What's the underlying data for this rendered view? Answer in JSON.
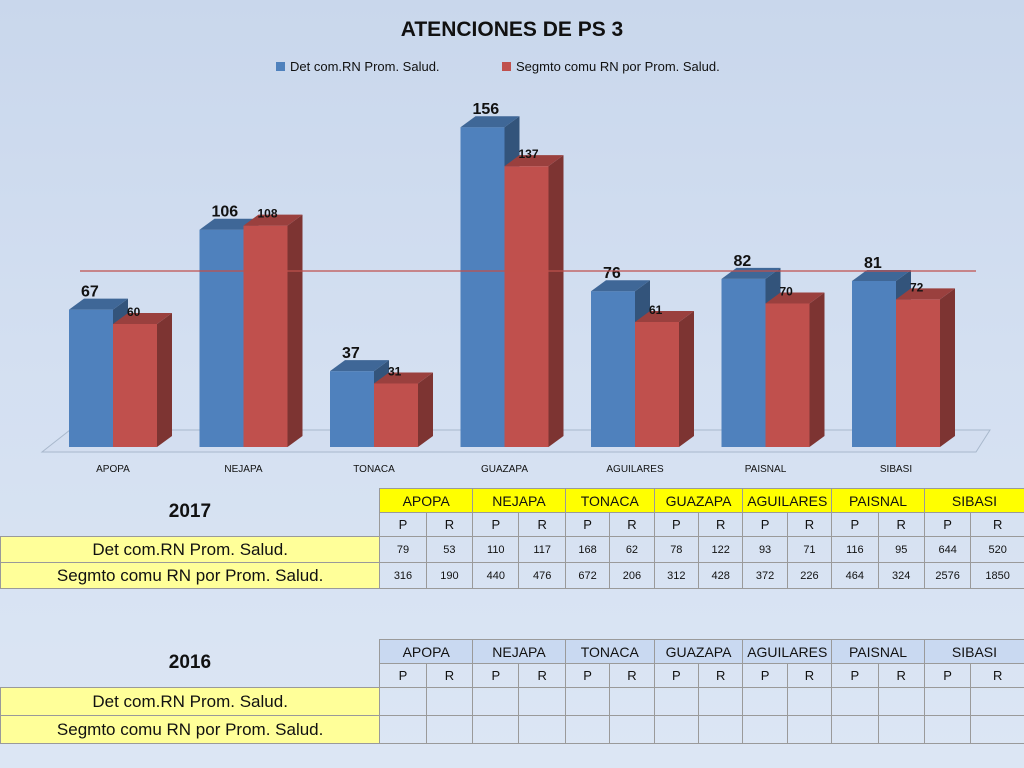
{
  "chart_data": {
    "type": "bar",
    "title": "ATENCIONES DE PS 3",
    "categories": [
      "APOPA",
      "NEJAPA",
      "TONACA",
      "GUAZAPA",
      "AGUILARES",
      "PAISNAL",
      "SIBASI"
    ],
    "series": [
      {
        "name": "Det com.RN  Prom. Salud.",
        "values": [
          67,
          106,
          37,
          156,
          76,
          82,
          81
        ],
        "color": "#4f81bd"
      },
      {
        "name": "Segmto comu RN por Prom. Salud.",
        "values": [
          60,
          108,
          31,
          137,
          61,
          70,
          72
        ],
        "color": "#c0504d"
      }
    ],
    "reference_line": {
      "value": 80,
      "color": "#c0504d"
    },
    "ylim": [
      0,
      160
    ],
    "grid": false,
    "legend": "top",
    "three_d": true
  },
  "table_2017": {
    "year": "2017",
    "columns": [
      "APOPA",
      "NEJAPA",
      "TONACA",
      "GUAZAPA",
      "AGUILARES",
      "PAISNAL",
      "SIBASI"
    ],
    "subcols": [
      "P",
      "R",
      "P",
      "R",
      "P",
      "R",
      "P",
      "R",
      "P",
      "R",
      "P",
      "R",
      "P",
      "R"
    ],
    "rows": [
      {
        "label": " Det com.RN  Prom. Salud.",
        "values": [
          "79",
          "53",
          "110",
          "117",
          "168",
          "62",
          "78",
          "122",
          "93",
          "71",
          "116",
          "95",
          "644",
          "520"
        ]
      },
      {
        "label": "Segmto comu RN por Prom. Salud.",
        "values": [
          "316",
          "190",
          "440",
          "476",
          "672",
          "206",
          "312",
          "428",
          "372",
          "226",
          "464",
          "324",
          "2576",
          "1850"
        ]
      }
    ]
  },
  "table_2016": {
    "year": "2016",
    "columns": [
      "APOPA",
      "NEJAPA",
      "TONACA",
      "GUAZAPA",
      "AGUILARES",
      "PAISNAL",
      "SIBASI"
    ],
    "subcols": [
      "P",
      "R",
      "P",
      "R",
      "P",
      "R",
      "P",
      "R",
      "P",
      "R",
      "P",
      "R",
      "P",
      "R"
    ],
    "rows": [
      {
        "label": " Det com.RN  Prom. Salud.",
        "values": []
      },
      {
        "label": "Segmto comu RN por Prom. Salud.",
        "values": []
      }
    ]
  }
}
